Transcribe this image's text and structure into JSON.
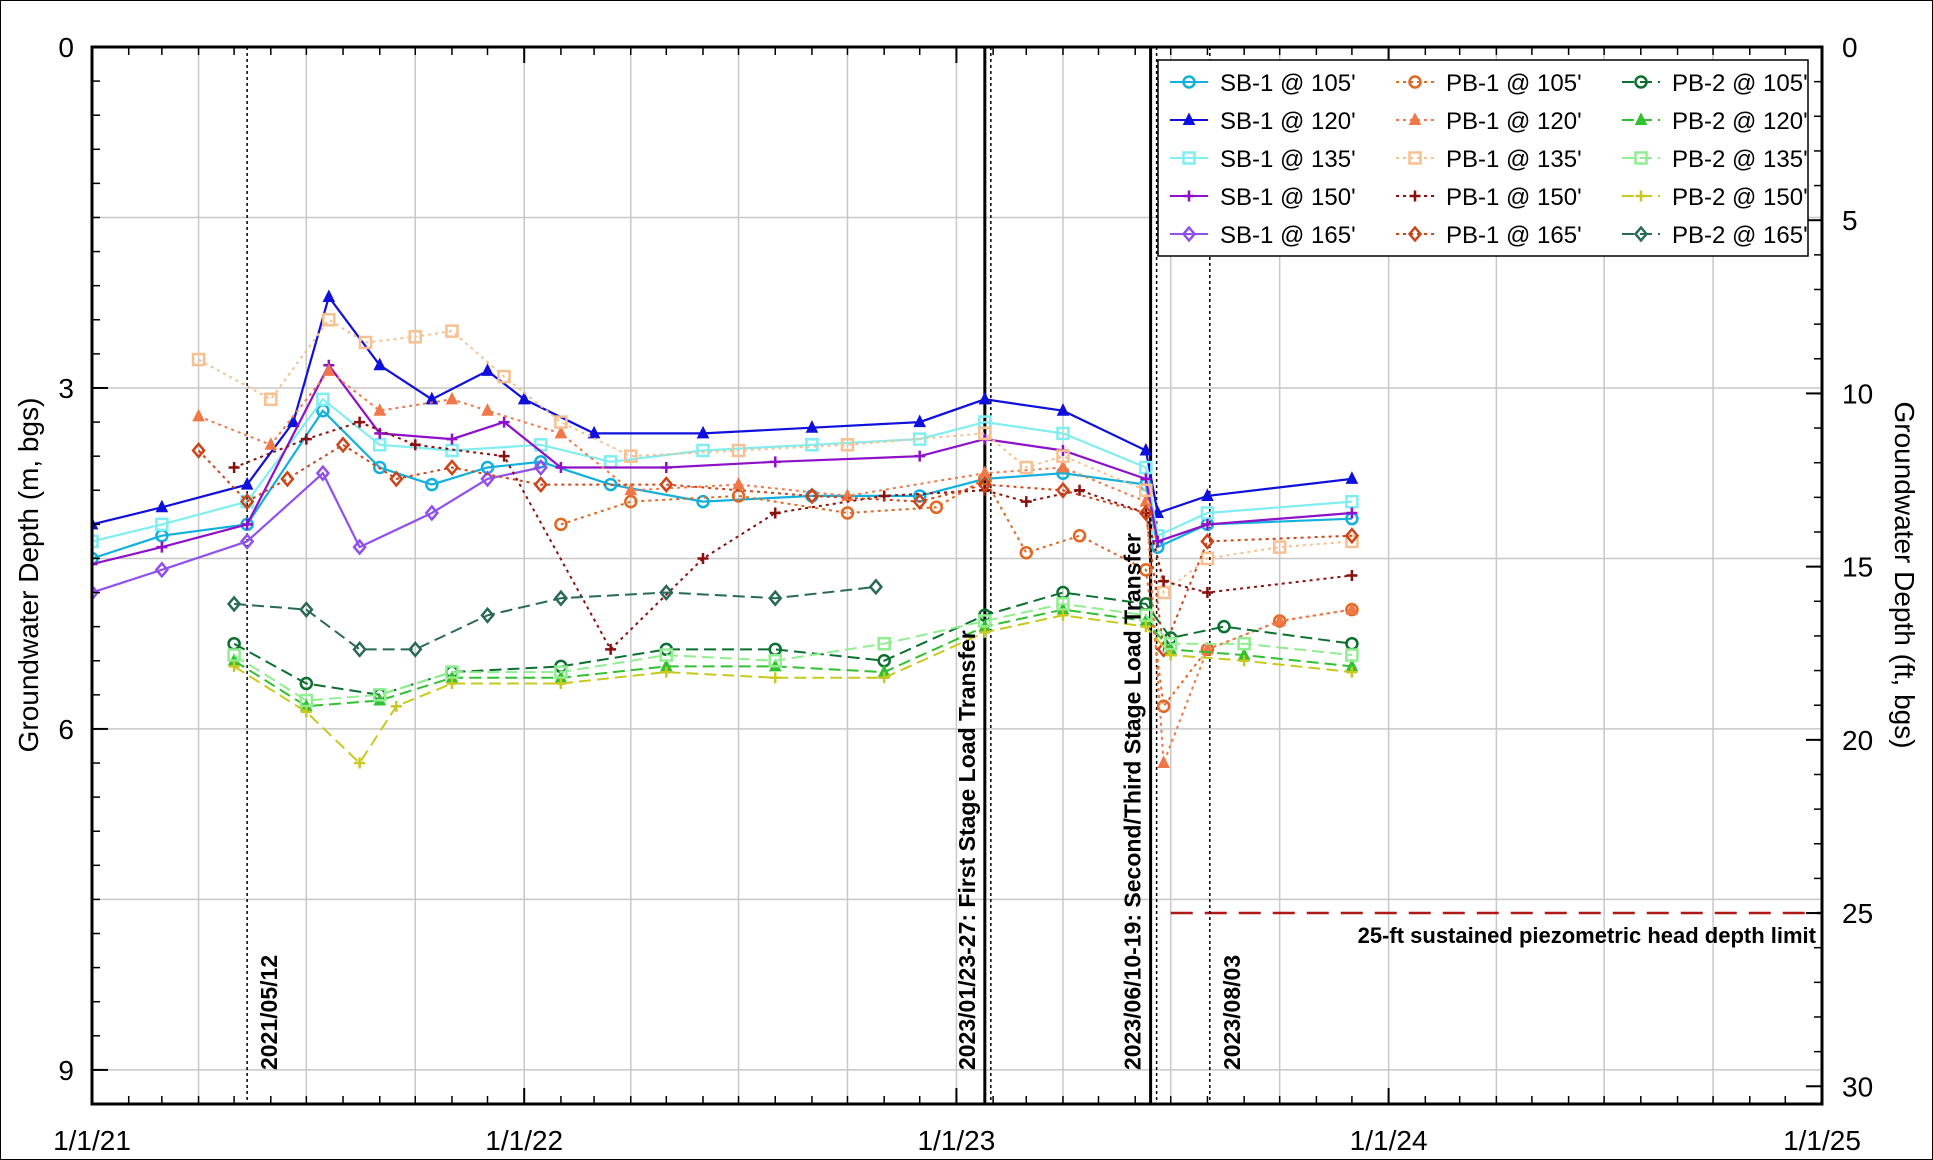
{
  "chart_data": {
    "type": "line",
    "ylabel": "Groundwater Depth (m, bgs)",
    "y2label": "Groundwater Depth (ft, bgs)",
    "xlim": [
      "2021-01-01",
      "2025-01-01"
    ],
    "ylim": [
      0,
      9.3
    ],
    "y_inverted": true,
    "grid": true,
    "x_tick_labels": [
      "1/1/21",
      "1/1/22",
      "1/1/23",
      "1/1/24",
      "1/1/25"
    ],
    "x_ticks": [
      "2021-01-01",
      "2022-01-01",
      "2023-01-01",
      "2024-01-01",
      "2025-01-01"
    ],
    "y_ticks": [
      0,
      3,
      6,
      9
    ],
    "y_tick_labels": [
      "0",
      "3",
      "6",
      "9"
    ],
    "y2_ticks": [
      0,
      5,
      10,
      15,
      20,
      25,
      30
    ],
    "y2_tick_labels": [
      "0",
      "5",
      "10",
      "15",
      "20",
      "25",
      "30"
    ],
    "legend_position": "top-right",
    "annotations": [
      {
        "date": "2021-05-12",
        "label": "2021/05/12",
        "style": "dotted"
      },
      {
        "date": "2023-01-25",
        "label": "2023/01/23-27: First Stage Load Transfer",
        "style": "solid"
      },
      {
        "date": "2023-06-14",
        "label": "2023/06/10-19: Second/Third Stage Load Transfer",
        "style": "solid"
      },
      {
        "date": "2023-08-03",
        "label": "2023/08/03",
        "style": "dotted"
      }
    ],
    "limit_line": {
      "depth_m": 7.62,
      "start": "2023-07-01",
      "end": "2025-01-01",
      "color": "#b01818",
      "label": "25-ft sustained piezometric head depth limit"
    },
    "series": [
      {
        "name": "SB-1 @ 105'",
        "color": "#12b0dc",
        "marker": "circle",
        "dash": "solid",
        "points": [
          [
            "2021-01-01",
            4.5
          ],
          [
            "2021-03-01",
            4.3
          ],
          [
            "2021-05-12",
            4.2
          ],
          [
            "2021-07-15",
            3.2
          ],
          [
            "2021-09-01",
            3.7
          ],
          [
            "2021-10-15",
            3.85
          ],
          [
            "2021-12-01",
            3.7
          ],
          [
            "2022-01-15",
            3.65
          ],
          [
            "2022-03-15",
            3.85
          ],
          [
            "2022-06-01",
            4.0
          ],
          [
            "2022-09-01",
            3.95
          ],
          [
            "2022-12-01",
            3.95
          ],
          [
            "2023-01-25",
            3.8
          ],
          [
            "2023-04-01",
            3.75
          ],
          [
            "2023-06-10",
            3.85
          ],
          [
            "2023-06-20",
            4.4
          ],
          [
            "2023-08-01",
            4.2
          ],
          [
            "2023-12-01",
            4.15
          ]
        ]
      },
      {
        "name": "SB-1 @ 120'",
        "color": "#1010dd",
        "marker": "triangle",
        "dash": "solid",
        "points": [
          [
            "2021-01-01",
            4.2
          ],
          [
            "2021-03-01",
            4.05
          ],
          [
            "2021-05-12",
            3.85
          ],
          [
            "2021-06-20",
            3.3
          ],
          [
            "2021-07-20",
            2.2
          ],
          [
            "2021-09-01",
            2.8
          ],
          [
            "2021-10-15",
            3.1
          ],
          [
            "2021-12-01",
            2.85
          ],
          [
            "2022-01-01",
            3.1
          ],
          [
            "2022-03-01",
            3.4
          ],
          [
            "2022-06-01",
            3.4
          ],
          [
            "2022-09-01",
            3.35
          ],
          [
            "2022-12-01",
            3.3
          ],
          [
            "2023-01-25",
            3.1
          ],
          [
            "2023-04-01",
            3.2
          ],
          [
            "2023-06-10",
            3.55
          ],
          [
            "2023-06-20",
            4.1
          ],
          [
            "2023-08-01",
            3.95
          ],
          [
            "2023-12-01",
            3.8
          ]
        ]
      },
      {
        "name": "SB-1 @ 135'",
        "color": "#80eef0",
        "marker": "square",
        "dash": "solid",
        "points": [
          [
            "2021-01-01",
            4.35
          ],
          [
            "2021-03-01",
            4.2
          ],
          [
            "2021-05-12",
            4.0
          ],
          [
            "2021-07-15",
            3.1
          ],
          [
            "2021-09-01",
            3.5
          ],
          [
            "2021-11-01",
            3.55
          ],
          [
            "2022-01-15",
            3.5
          ],
          [
            "2022-03-15",
            3.65
          ],
          [
            "2022-06-01",
            3.55
          ],
          [
            "2022-09-01",
            3.5
          ],
          [
            "2022-12-01",
            3.45
          ],
          [
            "2023-01-25",
            3.3
          ],
          [
            "2023-04-01",
            3.4
          ],
          [
            "2023-06-10",
            3.7
          ],
          [
            "2023-06-20",
            4.3
          ],
          [
            "2023-08-01",
            4.1
          ],
          [
            "2023-12-01",
            4.0
          ]
        ]
      },
      {
        "name": "SB-1 @ 150'",
        "color": "#8e10c8",
        "marker": "plus",
        "dash": "solid",
        "points": [
          [
            "2021-01-01",
            4.55
          ],
          [
            "2021-03-01",
            4.4
          ],
          [
            "2021-05-12",
            4.2
          ],
          [
            "2021-07-20",
            2.8
          ],
          [
            "2021-09-01",
            3.4
          ],
          [
            "2021-11-01",
            3.45
          ],
          [
            "2021-12-15",
            3.3
          ],
          [
            "2022-02-01",
            3.7
          ],
          [
            "2022-05-01",
            3.7
          ],
          [
            "2022-08-01",
            3.65
          ],
          [
            "2022-12-01",
            3.6
          ],
          [
            "2023-01-25",
            3.45
          ],
          [
            "2023-04-01",
            3.55
          ],
          [
            "2023-06-10",
            3.8
          ],
          [
            "2023-06-20",
            4.35
          ],
          [
            "2023-08-01",
            4.2
          ],
          [
            "2023-12-01",
            4.1
          ]
        ]
      },
      {
        "name": "SB-1 @ 165'",
        "color": "#9050ee",
        "marker": "diamond",
        "dash": "solid",
        "points": [
          [
            "2021-01-01",
            4.8
          ],
          [
            "2021-03-01",
            4.6
          ],
          [
            "2021-05-12",
            4.35
          ],
          [
            "2021-07-15",
            3.75
          ],
          [
            "2021-08-15",
            4.4
          ],
          [
            "2021-10-15",
            4.1
          ],
          [
            "2021-12-01",
            3.8
          ],
          [
            "2022-01-15",
            3.7
          ]
        ]
      },
      {
        "name": "PB-1 @ 105'",
        "color": "#e06820",
        "marker": "circle",
        "dash": "dotted",
        "points": [
          [
            "2022-02-01",
            4.2
          ],
          [
            "2022-04-01",
            4.0
          ],
          [
            "2022-07-01",
            3.95
          ],
          [
            "2022-10-01",
            4.1
          ],
          [
            "2022-12-15",
            4.05
          ],
          [
            "2023-01-25",
            3.8
          ],
          [
            "2023-03-01",
            4.45
          ],
          [
            "2023-04-15",
            4.3
          ],
          [
            "2023-06-10",
            4.6
          ],
          [
            "2023-06-25",
            5.8
          ],
          [
            "2023-08-01",
            5.3
          ],
          [
            "2023-10-01",
            5.05
          ],
          [
            "2023-12-01",
            4.95
          ]
        ]
      },
      {
        "name": "PB-1 @ 120'",
        "color": "#f07848",
        "marker": "triangle",
        "dash": "dotted",
        "points": [
          [
            "2021-04-01",
            3.25
          ],
          [
            "2021-06-01",
            3.5
          ],
          [
            "2021-07-20",
            2.85
          ],
          [
            "2021-09-01",
            3.2
          ],
          [
            "2021-11-01",
            3.1
          ],
          [
            "2021-12-01",
            3.2
          ],
          [
            "2022-02-01",
            3.4
          ],
          [
            "2022-04-01",
            3.9
          ],
          [
            "2022-07-01",
            3.85
          ],
          [
            "2022-10-01",
            3.95
          ],
          [
            "2023-01-25",
            3.75
          ],
          [
            "2023-04-01",
            3.7
          ],
          [
            "2023-06-10",
            4.0
          ],
          [
            "2023-06-25",
            6.3
          ],
          [
            "2023-08-01",
            5.3
          ],
          [
            "2023-10-01",
            5.05
          ],
          [
            "2023-12-01",
            4.95
          ]
        ]
      },
      {
        "name": "PB-1 @ 135'",
        "color": "#f8c090",
        "marker": "square",
        "dash": "dotted",
        "points": [
          [
            "2021-04-01",
            2.75
          ],
          [
            "2021-06-01",
            3.1
          ],
          [
            "2021-07-20",
            2.4
          ],
          [
            "2021-08-20",
            2.6
          ],
          [
            "2021-10-01",
            2.55
          ],
          [
            "2021-11-01",
            2.5
          ],
          [
            "2021-12-15",
            2.9
          ],
          [
            "2022-02-01",
            3.3
          ],
          [
            "2022-04-01",
            3.6
          ],
          [
            "2022-07-01",
            3.55
          ],
          [
            "2022-10-01",
            3.5
          ],
          [
            "2023-01-25",
            3.4
          ],
          [
            "2023-03-01",
            3.7
          ],
          [
            "2023-04-01",
            3.6
          ],
          [
            "2023-06-10",
            3.9
          ],
          [
            "2023-06-25",
            4.8
          ],
          [
            "2023-08-01",
            4.5
          ],
          [
            "2023-10-01",
            4.4
          ],
          [
            "2023-12-01",
            4.35
          ]
        ]
      },
      {
        "name": "PB-1 @ 150'",
        "color": "#8a1010",
        "marker": "plus",
        "dash": "dotted",
        "points": [
          [
            "2021-05-01",
            3.7
          ],
          [
            "2021-07-01",
            3.45
          ],
          [
            "2021-08-15",
            3.3
          ],
          [
            "2021-10-01",
            3.5
          ],
          [
            "2021-12-15",
            3.6
          ],
          [
            "2022-03-15",
            5.3
          ],
          [
            "2022-06-01",
            4.5
          ],
          [
            "2022-08-01",
            4.1
          ],
          [
            "2022-11-01",
            3.95
          ],
          [
            "2023-01-25",
            3.9
          ],
          [
            "2023-03-01",
            4.0
          ],
          [
            "2023-04-15",
            3.9
          ],
          [
            "2023-06-10",
            4.1
          ],
          [
            "2023-06-25",
            4.7
          ],
          [
            "2023-08-01",
            4.8
          ],
          [
            "2023-12-01",
            4.65
          ]
        ]
      },
      {
        "name": "PB-1 @ 165'",
        "color": "#cc4418",
        "marker": "diamond",
        "dash": "dotted",
        "points": [
          [
            "2021-04-01",
            3.55
          ],
          [
            "2021-05-12",
            4.0
          ],
          [
            "2021-06-15",
            3.8
          ],
          [
            "2021-08-01",
            3.5
          ],
          [
            "2021-09-15",
            3.8
          ],
          [
            "2021-11-01",
            3.7
          ],
          [
            "2022-01-15",
            3.85
          ],
          [
            "2022-05-01",
            3.85
          ],
          [
            "2022-09-01",
            3.95
          ],
          [
            "2022-12-01",
            4.0
          ],
          [
            "2023-01-25",
            3.85
          ],
          [
            "2023-04-01",
            3.9
          ],
          [
            "2023-06-10",
            4.1
          ],
          [
            "2023-06-25",
            5.3
          ],
          [
            "2023-08-01",
            4.35
          ],
          [
            "2023-12-01",
            4.3
          ]
        ]
      },
      {
        "name": "PB-2 @ 105'",
        "color": "#0a7030",
        "marker": "circle",
        "dash": "dashed",
        "points": [
          [
            "2021-05-01",
            5.25
          ],
          [
            "2021-07-01",
            5.6
          ],
          [
            "2021-09-01",
            5.7
          ],
          [
            "2021-11-01",
            5.5
          ],
          [
            "2022-02-01",
            5.45
          ],
          [
            "2022-05-01",
            5.3
          ],
          [
            "2022-08-01",
            5.3
          ],
          [
            "2022-11-01",
            5.4
          ],
          [
            "2023-01-25",
            5.0
          ],
          [
            "2023-04-01",
            4.8
          ],
          [
            "2023-06-10",
            4.9
          ],
          [
            "2023-07-01",
            5.2
          ],
          [
            "2023-08-15",
            5.1
          ],
          [
            "2023-12-01",
            5.25
          ]
        ]
      },
      {
        "name": "PB-2 @ 120'",
        "color": "#30c030",
        "marker": "triangle",
        "dash": "dashed",
        "points": [
          [
            "2021-05-01",
            5.4
          ],
          [
            "2021-07-01",
            5.8
          ],
          [
            "2021-09-01",
            5.75
          ],
          [
            "2021-11-01",
            5.55
          ],
          [
            "2022-02-01",
            5.55
          ],
          [
            "2022-05-01",
            5.45
          ],
          [
            "2022-08-01",
            5.45
          ],
          [
            "2022-11-01",
            5.5
          ],
          [
            "2023-01-25",
            5.1
          ],
          [
            "2023-04-01",
            4.95
          ],
          [
            "2023-06-10",
            5.05
          ],
          [
            "2023-07-01",
            5.3
          ],
          [
            "2023-09-01",
            5.35
          ],
          [
            "2023-12-01",
            5.45
          ]
        ]
      },
      {
        "name": "PB-2 @ 135'",
        "color": "#90ee90",
        "marker": "square",
        "dash": "dashed",
        "points": [
          [
            "2021-05-01",
            5.35
          ],
          [
            "2021-07-01",
            5.75
          ],
          [
            "2021-09-01",
            5.7
          ],
          [
            "2021-11-01",
            5.5
          ],
          [
            "2022-02-01",
            5.5
          ],
          [
            "2022-05-01",
            5.35
          ],
          [
            "2022-08-01",
            5.4
          ],
          [
            "2022-11-01",
            5.25
          ],
          [
            "2023-01-25",
            5.05
          ],
          [
            "2023-04-01",
            4.9
          ],
          [
            "2023-06-10",
            5.0
          ],
          [
            "2023-07-01",
            5.25
          ],
          [
            "2023-09-01",
            5.25
          ],
          [
            "2023-12-01",
            5.35
          ]
        ]
      },
      {
        "name": "PB-2 @ 150'",
        "color": "#c8c820",
        "marker": "plus",
        "dash": "dashed",
        "points": [
          [
            "2021-05-01",
            5.45
          ],
          [
            "2021-07-01",
            5.85
          ],
          [
            "2021-08-15",
            6.3
          ],
          [
            "2021-09-15",
            5.8
          ],
          [
            "2021-11-01",
            5.6
          ],
          [
            "2022-02-01",
            5.6
          ],
          [
            "2022-05-01",
            5.5
          ],
          [
            "2022-08-01",
            5.55
          ],
          [
            "2022-11-01",
            5.55
          ],
          [
            "2023-01-25",
            5.15
          ],
          [
            "2023-04-01",
            5.0
          ],
          [
            "2023-06-10",
            5.1
          ],
          [
            "2023-07-01",
            5.35
          ],
          [
            "2023-09-01",
            5.4
          ],
          [
            "2023-12-01",
            5.5
          ]
        ]
      },
      {
        "name": "PB-2 @ 165'",
        "color": "#2a6858",
        "marker": "diamond",
        "dash": "dashed",
        "points": [
          [
            "2021-05-01",
            4.9
          ],
          [
            "2021-07-01",
            4.95
          ],
          [
            "2021-08-15",
            5.3
          ],
          [
            "2021-10-01",
            5.3
          ],
          [
            "2021-12-01",
            5.0
          ],
          [
            "2022-02-01",
            4.85
          ],
          [
            "2022-05-01",
            4.8
          ],
          [
            "2022-08-01",
            4.85
          ],
          [
            "2022-10-25",
            4.75
          ]
        ]
      }
    ]
  }
}
